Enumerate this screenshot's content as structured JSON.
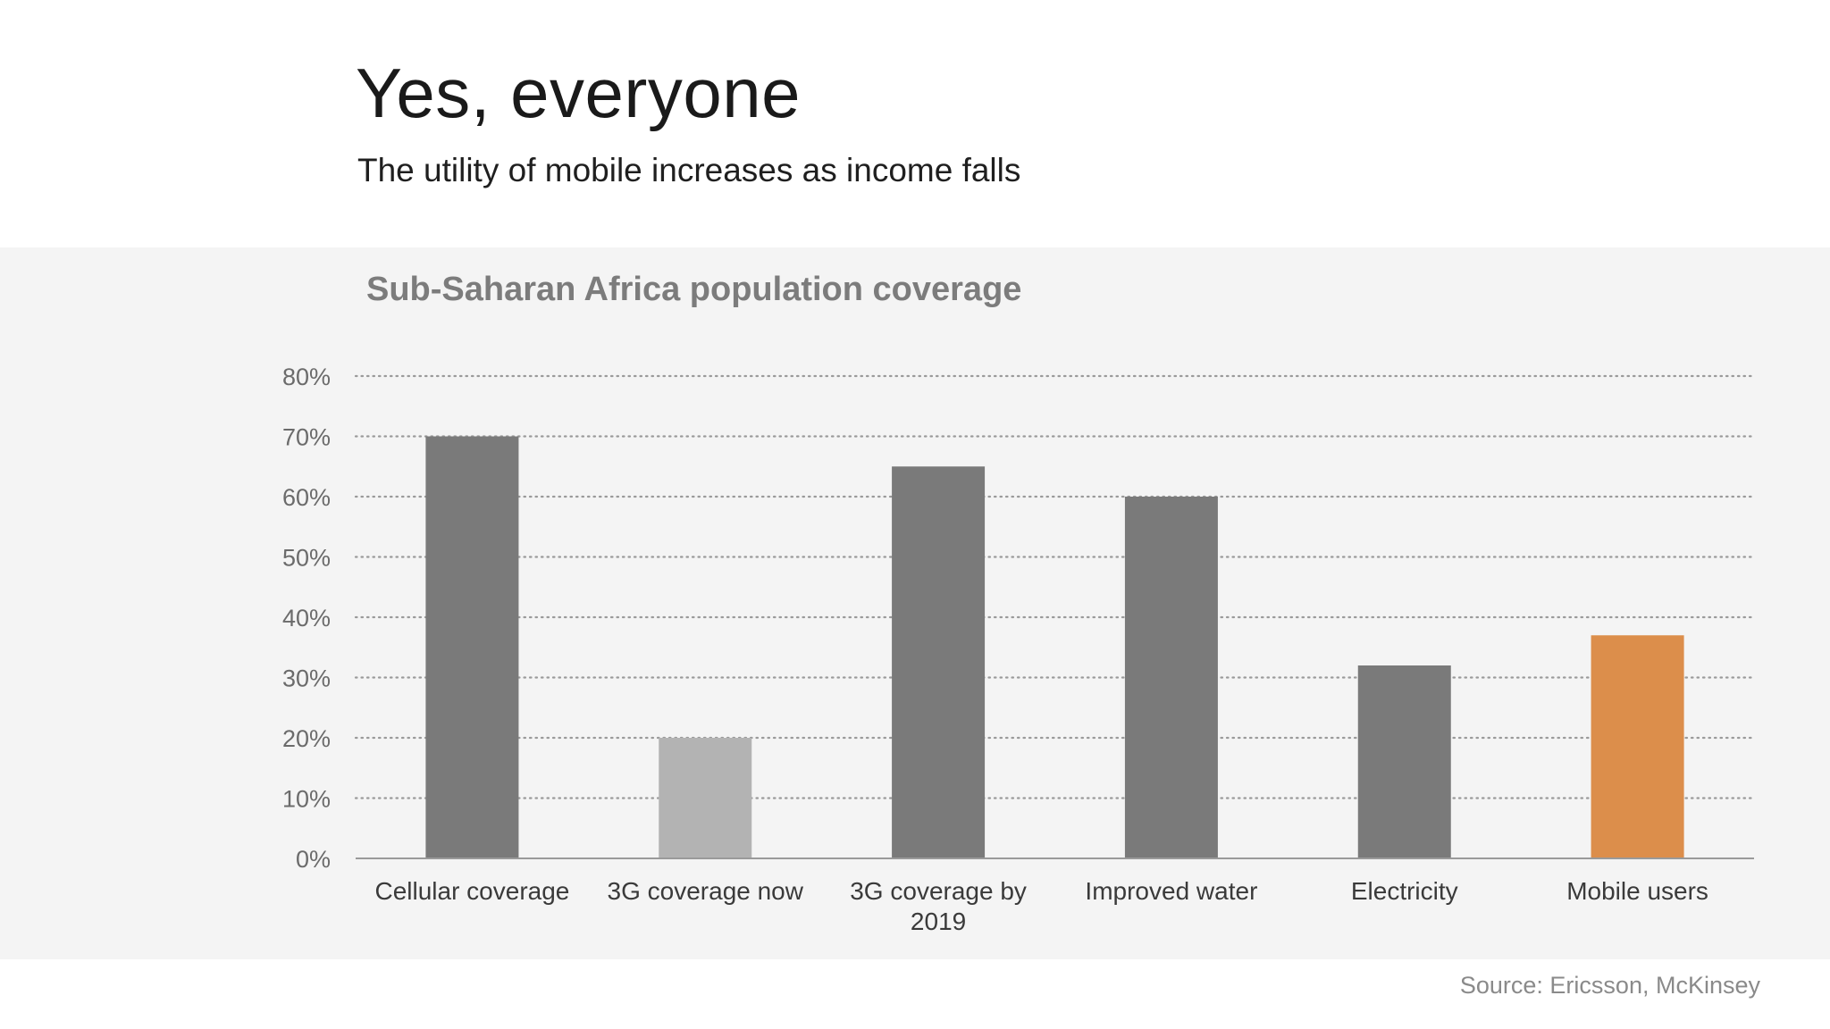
{
  "slide": {
    "headline": "Yes, everyone",
    "subheadline": "The utility of mobile increases as income falls",
    "source": "Source: Ericsson, McKinsey"
  },
  "chart_data": {
    "type": "bar",
    "title": "Sub-Saharan Africa population coverage",
    "categories": [
      "Cellular coverage",
      "3G coverage now",
      "3G coverage by 2019",
      "Improved water",
      "Electricity",
      "Mobile users"
    ],
    "category_lines": [
      [
        "Cellular coverage"
      ],
      [
        "3G coverage now"
      ],
      [
        "3G coverage by",
        "2019"
      ],
      [
        "Improved water"
      ],
      [
        "Electricity"
      ],
      [
        "Mobile users"
      ]
    ],
    "values": [
      70,
      20,
      65,
      60,
      32,
      37
    ],
    "value_unit": "%",
    "ylim": [
      0,
      80
    ],
    "yticks": [
      0,
      10,
      20,
      30,
      40,
      50,
      60,
      70,
      80
    ],
    "ytick_labels": [
      "0%",
      "10%",
      "20%",
      "30%",
      "40%",
      "50%",
      "60%",
      "70%",
      "80%"
    ],
    "xlabel": "",
    "ylabel": "",
    "grid": "horizontal-dotted",
    "bar_colors": [
      "#7a7a7a",
      "#b3b3b3",
      "#7a7a7a",
      "#7a7a7a",
      "#7a7a7a",
      "#dc8e4b"
    ]
  }
}
